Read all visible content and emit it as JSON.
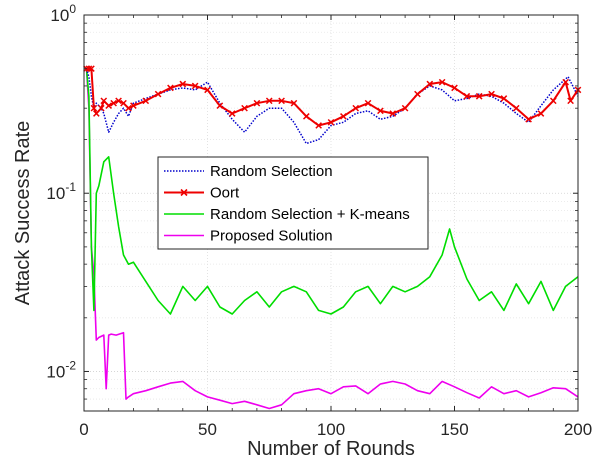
{
  "chart_data": {
    "type": "line",
    "xlabel": "Number of Rounds",
    "ylabel": "Attack Success Rate",
    "xlim": [
      0,
      200
    ],
    "ylim": [
      0.006,
      1
    ],
    "yscale": "log",
    "grid": true,
    "legend_position": "center-left",
    "x_ticks": [
      0,
      50,
      100,
      150,
      200
    ],
    "y_ticks": [
      {
        "value": 0.01,
        "base": "10",
        "exp": "-2"
      },
      {
        "value": 0.1,
        "base": "10",
        "exp": "-1"
      },
      {
        "value": 1,
        "base": "10",
        "exp": "0"
      }
    ],
    "series": [
      {
        "name": "Random Selection",
        "color": "#0000cc",
        "style": "dotted",
        "x": [
          1,
          2,
          3,
          4,
          5,
          7,
          8,
          10,
          12,
          14,
          16,
          18,
          20,
          25,
          30,
          35,
          40,
          45,
          50,
          55,
          60,
          65,
          70,
          75,
          80,
          85,
          90,
          95,
          100,
          105,
          110,
          115,
          120,
          125,
          130,
          135,
          140,
          145,
          150,
          155,
          160,
          165,
          170,
          175,
          180,
          185,
          190,
          196,
          200
        ],
        "y": [
          0.5,
          0.45,
          0.35,
          0.3,
          0.32,
          0.3,
          0.28,
          0.22,
          0.25,
          0.28,
          0.3,
          0.27,
          0.32,
          0.34,
          0.36,
          0.38,
          0.39,
          0.38,
          0.42,
          0.32,
          0.26,
          0.22,
          0.27,
          0.3,
          0.3,
          0.25,
          0.19,
          0.2,
          0.24,
          0.25,
          0.28,
          0.29,
          0.26,
          0.27,
          0.3,
          0.36,
          0.4,
          0.38,
          0.33,
          0.34,
          0.36,
          0.35,
          0.32,
          0.28,
          0.25,
          0.31,
          0.38,
          0.45,
          0.35
        ]
      },
      {
        "name": "Oort",
        "color": "#ee0000",
        "style": "solid-x",
        "x": [
          1,
          2,
          3,
          4,
          5,
          7,
          8,
          10,
          12,
          14,
          16,
          18,
          20,
          25,
          30,
          35,
          40,
          45,
          50,
          55,
          60,
          65,
          70,
          75,
          80,
          85,
          90,
          95,
          100,
          105,
          110,
          115,
          120,
          125,
          130,
          135,
          140,
          145,
          150,
          155,
          160,
          165,
          170,
          175,
          180,
          185,
          190,
          195,
          197,
          200
        ],
        "y": [
          0.5,
          0.5,
          0.5,
          0.3,
          0.28,
          0.3,
          0.33,
          0.31,
          0.32,
          0.33,
          0.32,
          0.3,
          0.31,
          0.33,
          0.36,
          0.39,
          0.41,
          0.4,
          0.38,
          0.31,
          0.28,
          0.3,
          0.32,
          0.33,
          0.33,
          0.32,
          0.27,
          0.24,
          0.25,
          0.27,
          0.3,
          0.32,
          0.29,
          0.28,
          0.3,
          0.36,
          0.41,
          0.42,
          0.39,
          0.35,
          0.35,
          0.36,
          0.34,
          0.3,
          0.26,
          0.28,
          0.33,
          0.42,
          0.33,
          0.38
        ]
      },
      {
        "name": "Random Selection + K-means",
        "color": "#00dd00",
        "style": "solid",
        "x": [
          1,
          2,
          3,
          4,
          5,
          6,
          8,
          10,
          12,
          14,
          16,
          18,
          20,
          25,
          30,
          35,
          40,
          45,
          50,
          55,
          60,
          65,
          70,
          75,
          80,
          85,
          90,
          95,
          100,
          105,
          110,
          115,
          120,
          125,
          130,
          135,
          140,
          145,
          148,
          150,
          155,
          160,
          165,
          170,
          175,
          180,
          185,
          190,
          195,
          200
        ],
        "y": [
          0.5,
          0.35,
          0.05,
          0.022,
          0.1,
          0.11,
          0.15,
          0.16,
          0.1,
          0.065,
          0.045,
          0.04,
          0.041,
          0.032,
          0.025,
          0.021,
          0.03,
          0.025,
          0.03,
          0.023,
          0.021,
          0.025,
          0.028,
          0.023,
          0.028,
          0.03,
          0.028,
          0.022,
          0.021,
          0.023,
          0.028,
          0.03,
          0.024,
          0.03,
          0.028,
          0.03,
          0.034,
          0.045,
          0.063,
          0.05,
          0.033,
          0.025,
          0.028,
          0.022,
          0.031,
          0.024,
          0.032,
          0.022,
          0.03,
          0.034
        ]
      },
      {
        "name": "Proposed Solution",
        "color": "#ee00ee",
        "style": "solid",
        "x": [
          1,
          2,
          3,
          4,
          5,
          6,
          8,
          9,
          10,
          11,
          13,
          16,
          17,
          18,
          20,
          25,
          30,
          35,
          40,
          45,
          50,
          55,
          60,
          65,
          70,
          75,
          80,
          85,
          90,
          95,
          100,
          105,
          110,
          115,
          120,
          125,
          130,
          135,
          140,
          145,
          150,
          155,
          160,
          165,
          170,
          175,
          180,
          185,
          190,
          195,
          200
        ],
        "y": [
          0.5,
          0.3,
          0.05,
          0.035,
          0.015,
          0.0155,
          0.016,
          0.008,
          0.016,
          0.0162,
          0.016,
          0.0165,
          0.007,
          0.0072,
          0.0075,
          0.0078,
          0.0082,
          0.0086,
          0.0088,
          0.0078,
          0.0072,
          0.0069,
          0.0066,
          0.0068,
          0.0065,
          0.0062,
          0.0065,
          0.0075,
          0.0078,
          0.008,
          0.0075,
          0.0082,
          0.0083,
          0.0075,
          0.0085,
          0.0088,
          0.0085,
          0.0078,
          0.0075,
          0.0088,
          0.0082,
          0.0076,
          0.0071,
          0.0082,
          0.0075,
          0.0078,
          0.0072,
          0.0076,
          0.0081,
          0.008,
          0.0072
        ]
      }
    ]
  }
}
